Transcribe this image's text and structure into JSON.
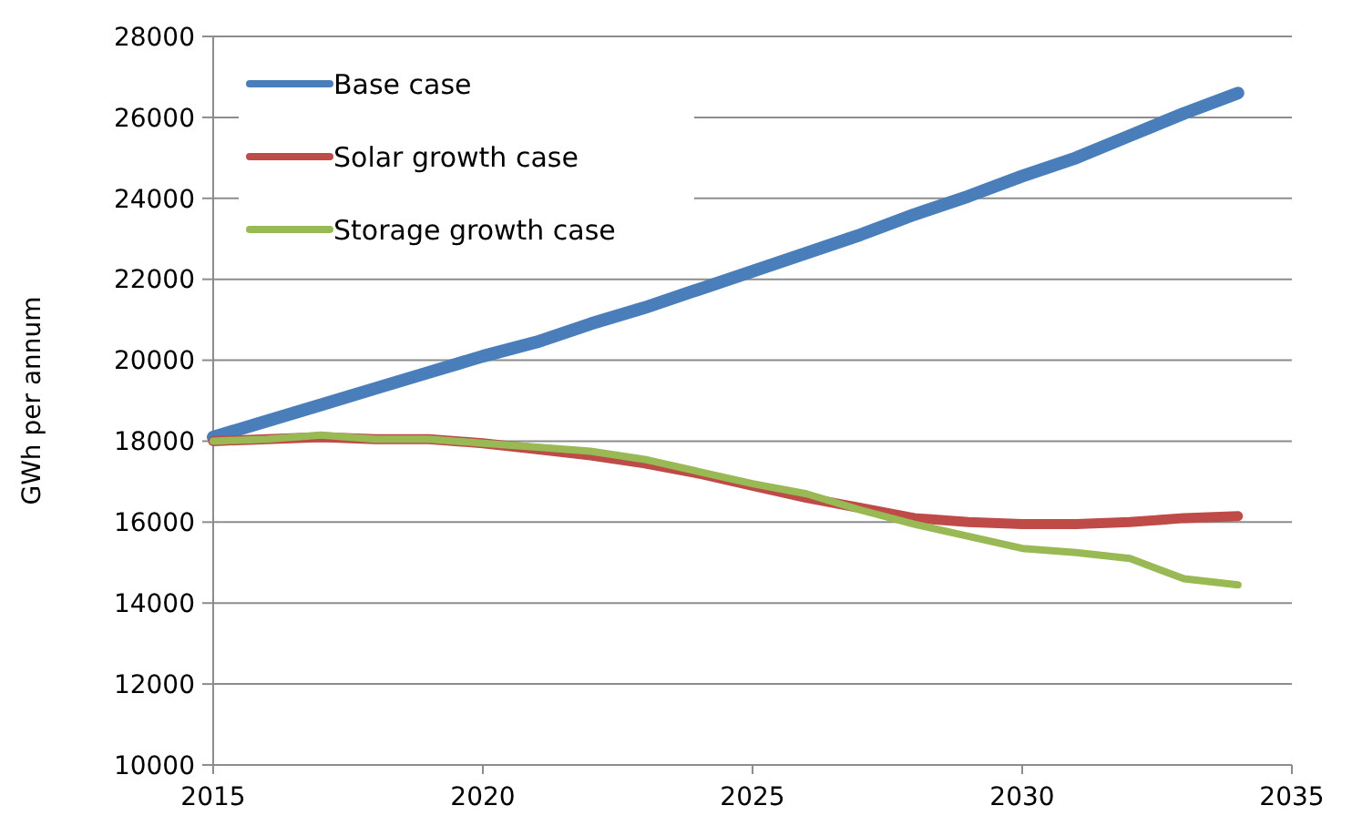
{
  "chart_data": {
    "type": "line",
    "ylabel": "GWh per annum",
    "x": [
      2015,
      2016,
      2017,
      2018,
      2019,
      2020,
      2021,
      2022,
      2023,
      2024,
      2025,
      2026,
      2027,
      2028,
      2029,
      2030,
      2031,
      2032,
      2033,
      2034
    ],
    "series": [
      {
        "name": "Base case",
        "color": "#4a7ebb",
        "values": [
          18100,
          18500,
          18900,
          19300,
          19700,
          20100,
          20450,
          20900,
          21300,
          21750,
          22200,
          22650,
          23100,
          23600,
          24050,
          24550,
          25000,
          25550,
          26100,
          26600
        ]
      },
      {
        "name": "Solar growth case",
        "color": "#be4b48",
        "values": [
          18000,
          18050,
          18100,
          18050,
          18050,
          17950,
          17800,
          17650,
          17450,
          17200,
          16900,
          16600,
          16350,
          16100,
          16000,
          15950,
          15950,
          16000,
          16100,
          16150
        ]
      },
      {
        "name": "Storage growth case",
        "color": "#98b954",
        "values": [
          18000,
          18050,
          18150,
          18050,
          18050,
          17950,
          17850,
          17750,
          17550,
          17250,
          16950,
          16700,
          16300,
          15950,
          15650,
          15350,
          15250,
          15100,
          14600,
          14450
        ]
      }
    ],
    "xlim": [
      2015,
      2035
    ],
    "xticks": [
      2015,
      2020,
      2025,
      2030,
      2035
    ],
    "ylim": [
      10000,
      28000
    ],
    "yticks": [
      10000,
      12000,
      14000,
      16000,
      18000,
      20000,
      22000,
      24000,
      26000,
      28000
    ],
    "grid": "y",
    "legend": "top left",
    "marker": "none",
    "line_style": "solid"
  }
}
